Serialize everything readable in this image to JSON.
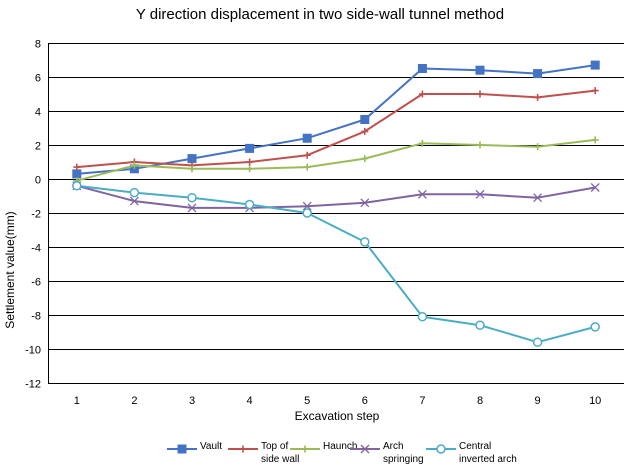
{
  "chart_data": {
    "type": "line",
    "title": "Y direction displacement in two side-wall tunnel method",
    "xlabel": "Excavation step",
    "ylabel": "Settlement value(mm)",
    "categories": [
      "1",
      "2",
      "3",
      "4",
      "5",
      "6",
      "7",
      "8",
      "9",
      "10"
    ],
    "ylim": [
      -12,
      8
    ],
    "yticks": [
      "8",
      "6",
      "4",
      "2",
      "0",
      "-2",
      "-4",
      "-6",
      "-8",
      "-10",
      "-12"
    ],
    "grid": true,
    "legend_position": "bottom",
    "series": [
      {
        "name": "Vault",
        "label_lines": [
          "Vault"
        ],
        "color": "#4472C4",
        "marker": "square",
        "values": [
          0.3,
          0.6,
          1.2,
          1.8,
          2.4,
          3.5,
          6.5,
          6.4,
          6.2,
          6.7
        ]
      },
      {
        "name": "Top of side wall",
        "label_lines": [
          "Top of",
          "side wall"
        ],
        "color": "#C0504D",
        "marker": "plus",
        "values": [
          0.7,
          1.0,
          0.8,
          1.0,
          1.4,
          2.8,
          5.0,
          5.0,
          4.8,
          5.2
        ]
      },
      {
        "name": "Haunch",
        "label_lines": [
          "Haunch"
        ],
        "color": "#9BBB59",
        "marker": "plus",
        "values": [
          -0.1,
          0.8,
          0.6,
          0.6,
          0.7,
          1.2,
          2.1,
          2.0,
          1.9,
          2.3
        ]
      },
      {
        "name": "Arch springing",
        "label_lines": [
          "Arch",
          "springing"
        ],
        "color": "#8064A2",
        "marker": "x",
        "values": [
          -0.4,
          -1.3,
          -1.7,
          -1.7,
          -1.6,
          -1.4,
          -0.9,
          -0.9,
          -1.1,
          -0.5
        ]
      },
      {
        "name": "Central inverted arch",
        "label_lines": [
          "Central",
          "inverted arch"
        ],
        "color": "#4BACC6",
        "marker": "circle",
        "values": [
          -0.4,
          -0.8,
          -1.1,
          -1.5,
          -2.0,
          -3.7,
          -8.1,
          -8.6,
          -9.6,
          -8.7
        ]
      }
    ]
  }
}
